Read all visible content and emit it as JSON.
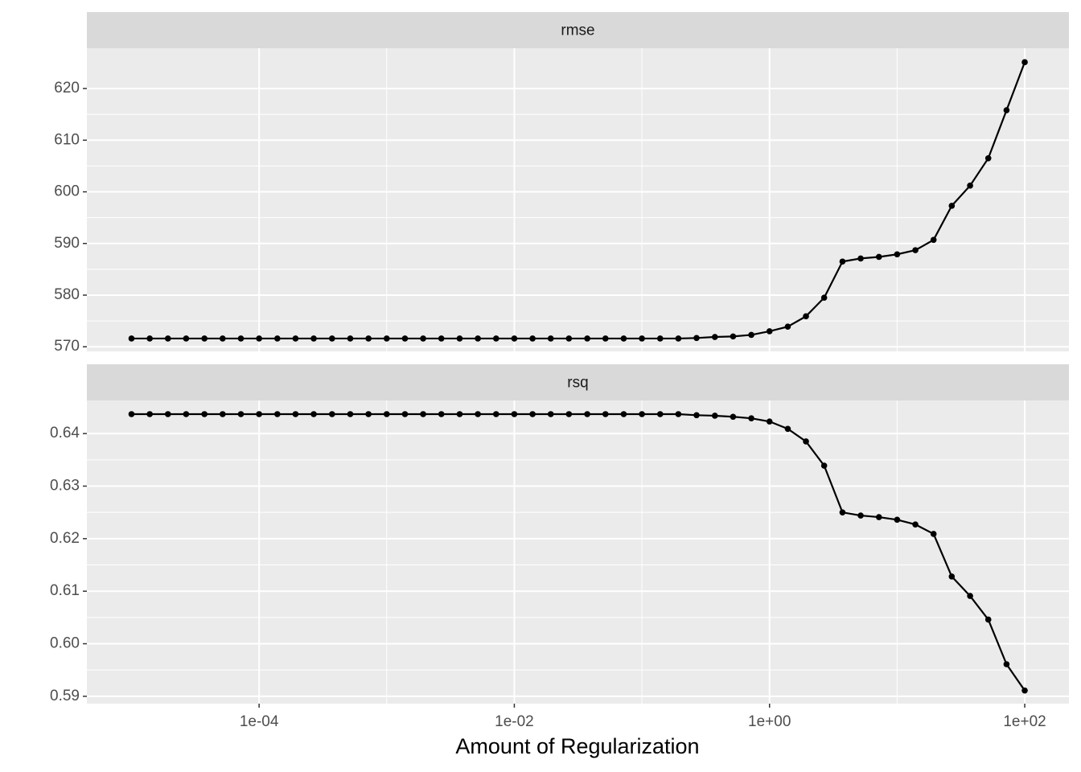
{
  "chart_data": {
    "type": "line",
    "xlabel": "Amount of Regularization",
    "xscale": "log",
    "grid": true,
    "color": "#000000",
    "x": [
      1e-05,
      1.39e-05,
      1.93e-05,
      2.68e-05,
      3.73e-05,
      5.18e-05,
      7.2e-05,
      0.0001,
      0.000139,
      0.000193,
      0.000268,
      0.000373,
      0.000518,
      0.00072,
      0.001,
      0.00139,
      0.00193,
      0.00268,
      0.00373,
      0.00518,
      0.0072,
      0.01,
      0.0139,
      0.0193,
      0.0268,
      0.0373,
      0.0518,
      0.072,
      0.1,
      0.139,
      0.193,
      0.268,
      0.373,
      0.518,
      0.72,
      1,
      1.39,
      1.93,
      2.68,
      3.73,
      5.18,
      7.2,
      10,
      13.9,
      19.3,
      26.8,
      37.3,
      51.8,
      72,
      100
    ],
    "xlim": [
      4.47e-06,
      222
    ],
    "xticks": [
      {
        "value": 0.0001,
        "label": "1e-04"
      },
      {
        "value": 0.01,
        "label": "1e-02"
      },
      {
        "value": 1,
        "label": "1e+00"
      },
      {
        "value": 100,
        "label": "1e+02"
      }
    ],
    "facets": [
      {
        "title": "rmse",
        "values": [
          571.6,
          571.6,
          571.6,
          571.6,
          571.6,
          571.6,
          571.6,
          571.6,
          571.6,
          571.6,
          571.6,
          571.6,
          571.6,
          571.6,
          571.6,
          571.6,
          571.6,
          571.6,
          571.6,
          571.6,
          571.6,
          571.6,
          571.6,
          571.6,
          571.6,
          571.6,
          571.6,
          571.6,
          571.6,
          571.6,
          571.6,
          571.7,
          571.9,
          572.0,
          572.3,
          573.0,
          573.9,
          575.9,
          579.5,
          586.5,
          587.1,
          587.4,
          587.9,
          588.7,
          590.7,
          597.3,
          601.2,
          606.5,
          615.8,
          625.1
        ],
        "ylim": [
          569.1,
          627.8
        ],
        "yticks": [
          570,
          580,
          590,
          600,
          610,
          620
        ]
      },
      {
        "title": "rsq",
        "values": [
          0.6437,
          0.6437,
          0.6437,
          0.6437,
          0.6437,
          0.6437,
          0.6437,
          0.6437,
          0.6437,
          0.6437,
          0.6437,
          0.6437,
          0.6437,
          0.6437,
          0.6437,
          0.6437,
          0.6437,
          0.6437,
          0.6437,
          0.6437,
          0.6437,
          0.6437,
          0.6437,
          0.6437,
          0.6437,
          0.6437,
          0.6437,
          0.6437,
          0.6437,
          0.6437,
          0.6437,
          0.6435,
          0.6434,
          0.6432,
          0.6429,
          0.6423,
          0.6409,
          0.6385,
          0.6339,
          0.625,
          0.6244,
          0.6241,
          0.6236,
          0.6227,
          0.6209,
          0.6128,
          0.6091,
          0.6046,
          0.5961,
          0.5911
        ],
        "ylim": [
          0.5886,
          0.6463
        ],
        "yticks": [
          0.59,
          {
            "value": 0.6,
            "label": "0.60"
          },
          0.61,
          0.62,
          0.63,
          0.64
        ]
      }
    ]
  }
}
